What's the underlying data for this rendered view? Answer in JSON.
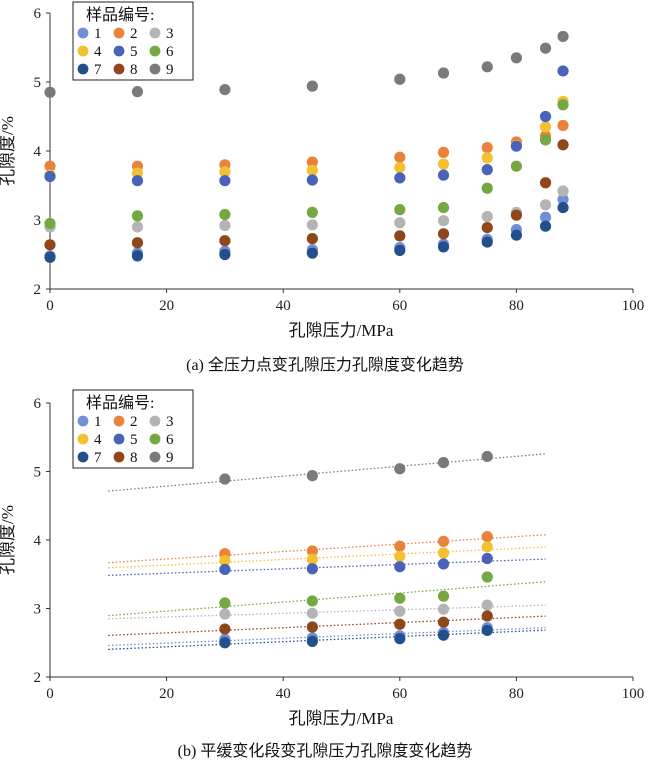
{
  "chart_data": [
    {
      "type": "scatter",
      "caption": "(a) 全压力点变孔隙压力孔隙度变化趋势",
      "xlabel": "孔隙压力/MPa",
      "ylabel": "孔隙度/%",
      "xlim": [
        0,
        100
      ],
      "ylim": [
        2,
        6
      ],
      "xticks": [
        "0",
        "20",
        "40",
        "60",
        "80",
        "100"
      ],
      "yticks": [
        "2",
        "3",
        "4",
        "5",
        "6"
      ],
      "grid": false,
      "legend": {
        "title": "样品编号:",
        "placement": "top-left",
        "columns": 3
      },
      "series": [
        {
          "name": "1",
          "color": "#6f8fd8",
          "x": [
            0,
            15,
            30,
            45,
            60,
            67.5,
            75,
            80,
            85,
            88
          ],
          "y": [
            2.48,
            2.52,
            2.55,
            2.57,
            2.6,
            2.65,
            2.72,
            2.86,
            3.04,
            3.3
          ]
        },
        {
          "name": "2",
          "color": "#e8823c",
          "x": [
            0,
            15,
            30,
            45,
            60,
            67.5,
            75,
            80,
            85,
            88
          ],
          "y": [
            3.78,
            3.78,
            3.8,
            3.84,
            3.91,
            3.98,
            4.05,
            4.13,
            4.22,
            4.37
          ]
        },
        {
          "name": "3",
          "color": "#b4b4b4",
          "x": [
            0,
            15,
            30,
            45,
            60,
            67.5,
            75,
            80,
            85,
            88
          ],
          "y": [
            2.9,
            2.9,
            2.92,
            2.93,
            2.96,
            2.99,
            3.05,
            3.11,
            3.22,
            3.42
          ]
        },
        {
          "name": "4",
          "color": "#f5c030",
          "x": [
            0,
            15,
            30,
            45,
            60,
            67.5,
            75,
            80,
            85,
            88
          ],
          "y": [
            3.65,
            3.68,
            3.7,
            3.72,
            3.76,
            3.81,
            3.9,
            4.08,
            4.35,
            4.72
          ]
        },
        {
          "name": "5",
          "color": "#4a62b8",
          "x": [
            0,
            15,
            30,
            45,
            60,
            67.5,
            75,
            80,
            85,
            88
          ],
          "y": [
            3.63,
            3.57,
            3.57,
            3.58,
            3.61,
            3.65,
            3.73,
            4.07,
            4.5,
            5.16
          ]
        },
        {
          "name": "6",
          "color": "#74a840",
          "x": [
            0,
            15,
            30,
            45,
            60,
            67.5,
            75,
            80,
            85,
            88
          ],
          "y": [
            2.95,
            3.06,
            3.08,
            3.11,
            3.15,
            3.18,
            3.46,
            3.78,
            4.16,
            4.67
          ]
        },
        {
          "name": "7",
          "color": "#23508a",
          "x": [
            0,
            15,
            30,
            45,
            60,
            67.5,
            75,
            80,
            85,
            88
          ],
          "y": [
            2.46,
            2.48,
            2.5,
            2.52,
            2.56,
            2.61,
            2.68,
            2.78,
            2.91,
            3.18
          ]
        },
        {
          "name": "8",
          "color": "#8e461a",
          "x": [
            0,
            15,
            30,
            45,
            60,
            67.5,
            75,
            80,
            85,
            88
          ],
          "y": [
            2.64,
            2.67,
            2.7,
            2.73,
            2.77,
            2.8,
            2.89,
            3.07,
            3.54,
            4.09
          ]
        },
        {
          "name": "9",
          "color": "#7a7a7a",
          "x": [
            0,
            15,
            30,
            45,
            60,
            67.5,
            75,
            80,
            85,
            88
          ],
          "y": [
            4.85,
            4.86,
            4.89,
            4.94,
            5.04,
            5.13,
            5.22,
            5.35,
            5.49,
            5.66
          ]
        }
      ]
    },
    {
      "type": "scatter",
      "caption": "(b) 平缓变化段变孔隙压力孔隙度变化趋势",
      "xlabel": "孔隙压力/MPa",
      "ylabel": "孔隙度/%",
      "xlim": [
        0,
        100
      ],
      "ylim": [
        2,
        6
      ],
      "xticks": [
        "0",
        "20",
        "40",
        "60",
        "80",
        "100"
      ],
      "yticks": [
        "2",
        "3",
        "4",
        "5",
        "6"
      ],
      "grid": false,
      "trendlines": {
        "style": "dotted",
        "xrange": [
          10,
          85
        ]
      },
      "legend": {
        "title": "样品编号:",
        "placement": "top-left",
        "columns": 3
      },
      "series": [
        {
          "name": "1",
          "color": "#6f8fd8",
          "x": [
            30,
            45,
            60,
            67.5,
            75
          ],
          "y": [
            2.55,
            2.57,
            2.6,
            2.65,
            2.72
          ]
        },
        {
          "name": "2",
          "color": "#e8823c",
          "x": [
            30,
            45,
            60,
            67.5,
            75
          ],
          "y": [
            3.8,
            3.84,
            3.91,
            3.98,
            4.05
          ]
        },
        {
          "name": "3",
          "color": "#b4b4b4",
          "x": [
            30,
            45,
            60,
            67.5,
            75
          ],
          "y": [
            2.92,
            2.93,
            2.96,
            2.99,
            3.05
          ]
        },
        {
          "name": "4",
          "color": "#f5c030",
          "x": [
            30,
            45,
            60,
            67.5,
            75
          ],
          "y": [
            3.7,
            3.72,
            3.76,
            3.81,
            3.9
          ]
        },
        {
          "name": "5",
          "color": "#4a62b8",
          "x": [
            30,
            45,
            60,
            67.5,
            75
          ],
          "y": [
            3.57,
            3.58,
            3.61,
            3.65,
            3.73
          ]
        },
        {
          "name": "6",
          "color": "#74a840",
          "x": [
            30,
            45,
            60,
            67.5,
            75
          ],
          "y": [
            3.08,
            3.11,
            3.15,
            3.18,
            3.46
          ]
        },
        {
          "name": "7",
          "color": "#23508a",
          "x": [
            30,
            45,
            60,
            67.5,
            75
          ],
          "y": [
            2.5,
            2.52,
            2.56,
            2.61,
            2.68
          ]
        },
        {
          "name": "8",
          "color": "#8e461a",
          "x": [
            30,
            45,
            60,
            67.5,
            75
          ],
          "y": [
            2.7,
            2.73,
            2.77,
            2.8,
            2.89
          ]
        },
        {
          "name": "9",
          "color": "#7a7a7a",
          "x": [
            30,
            45,
            60,
            67.5,
            75
          ],
          "y": [
            4.89,
            4.94,
            5.04,
            5.13,
            5.22
          ]
        }
      ]
    }
  ]
}
